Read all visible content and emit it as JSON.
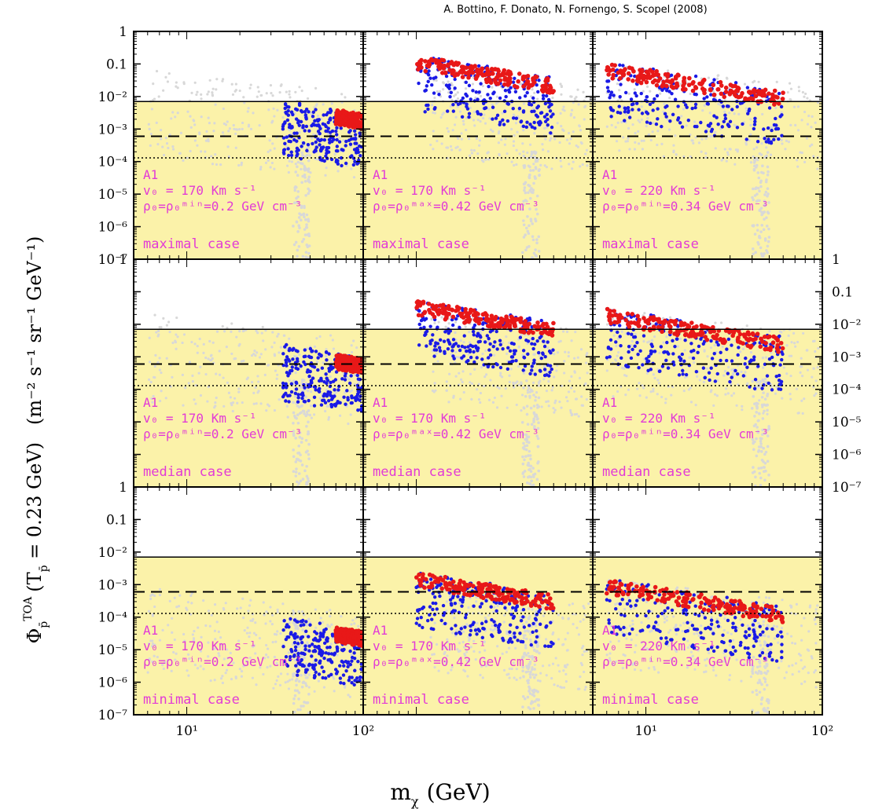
{
  "header": {
    "credit": "A. Bottino, F. Donato, N. Fornengo, S. Scopel (2008)"
  },
  "labels": {
    "ylabel_sym": "Φ",
    "ylabel_sub": "p̄",
    "ylabel_sup": "TOA",
    "ylabel_mid": "(T",
    "ylabel_rest": " = 0.23 GeV)",
    "ylabel_units": "(m⁻² s⁻¹ sr⁻¹ GeV⁻¹)",
    "xlabel": "m",
    "xlabel_sub": "χ",
    "xlabel_units": "(GeV)"
  },
  "colors": {
    "band": "#fbf2a9",
    "gray_points": "#d8d8d8",
    "blue_points": "#1a1ae6",
    "red_points": "#e81818",
    "annotation": "#e23bd6",
    "axis": "#000000"
  },
  "chart_data": {
    "type": "scatter",
    "layout": "3x3 grid",
    "xscale": "log",
    "yscale": "log",
    "xlim": [
      5,
      100
    ],
    "ylim": [
      1e-07,
      1
    ],
    "x_tick_labels": [
      "10¹",
      "10²"
    ],
    "y_tick_labels": [
      "1",
      "0.1",
      "10⁻²",
      "10⁻³",
      "10⁻⁴",
      "10⁻⁵",
      "10⁻⁶",
      "10⁻⁷"
    ],
    "rows": [
      "maximal case",
      "median case",
      "minimal case"
    ],
    "reference_lines": {
      "solid": 0.007,
      "dashed": 0.0006,
      "dotted": 0.00013
    },
    "panels": [
      {
        "row": 0,
        "col": 0,
        "lines": [
          "A1",
          "v₀ = 170 Km s⁻¹",
          "ρ₀=ρ₀ᵐⁱⁿ=0.2 GeV cm⁻³",
          "maximal case"
        ],
        "blue_range": [
          35,
          100
        ],
        "red_start": 70,
        "red_peak": 0.004
      },
      {
        "row": 0,
        "col": 1,
        "lines": [
          "A1",
          "v₀ = 170 Km s⁻¹",
          "ρ₀=ρ₀ᵐᵃˣ=0.42 GeV cm⁻³",
          "maximal case"
        ],
        "blue_range": [
          10,
          60
        ],
        "red_start": 10,
        "red_peak": 0.18
      },
      {
        "row": 0,
        "col": 2,
        "lines": [
          "A1",
          "v₀ = 220 Km s⁻¹",
          "ρ₀=ρ₀ᵐⁱⁿ=0.34 GeV cm⁻³",
          "maximal case"
        ],
        "blue_range": [
          6,
          60
        ],
        "red_start": 6,
        "red_peak": 0.11
      },
      {
        "row": 1,
        "col": 0,
        "lines": [
          "A1",
          "v₀ = 170 Km s⁻¹",
          "ρ₀=ρ₀ᵐⁱⁿ=0.2 GeV cm⁻³",
          "median case"
        ],
        "blue_range": [
          35,
          100
        ],
        "red_start": 70,
        "red_peak": 0.0012
      },
      {
        "row": 1,
        "col": 1,
        "lines": [
          "A1",
          "v₀ = 170 Km s⁻¹",
          "ρ₀=ρ₀ᵐᵃˣ=0.42 GeV cm⁻³",
          "median case"
        ],
        "blue_range": [
          10,
          60
        ],
        "red_start": 10,
        "red_peak": 0.055
      },
      {
        "row": 1,
        "col": 2,
        "lines": [
          "A1",
          "v₀ = 220 Km s⁻¹",
          "ρ₀=ρ₀ᵐⁱⁿ=0.34 GeV cm⁻³",
          "median case"
        ],
        "blue_range": [
          6,
          60
        ],
        "red_start": 6,
        "red_peak": 0.03
      },
      {
        "row": 2,
        "col": 0,
        "lines": [
          "A1",
          "v₀ = 170 Km s⁻¹",
          "ρ₀=ρ₀ᵐⁱⁿ=0.2 GeV cm⁻³",
          "minimal case"
        ],
        "blue_range": [
          35,
          100
        ],
        "red_start": 70,
        "red_peak": 5e-05
      },
      {
        "row": 2,
        "col": 1,
        "lines": [
          "A1",
          "v₀ = 170 Km s⁻¹",
          "ρ₀=ρ₀ᵐᵃˣ=0.42 GeV cm⁻³",
          "minimal case"
        ],
        "blue_range": [
          10,
          60
        ],
        "red_start": 10,
        "red_peak": 0.0024
      },
      {
        "row": 2,
        "col": 2,
        "lines": [
          "A1",
          "v₀ = 220 Km s⁻¹",
          "ρ₀=ρ₀ᵐⁱⁿ=0.34 GeV cm⁻³",
          "minimal case"
        ],
        "blue_range": [
          6,
          60
        ],
        "red_start": 6,
        "red_peak": 0.0015
      }
    ]
  }
}
